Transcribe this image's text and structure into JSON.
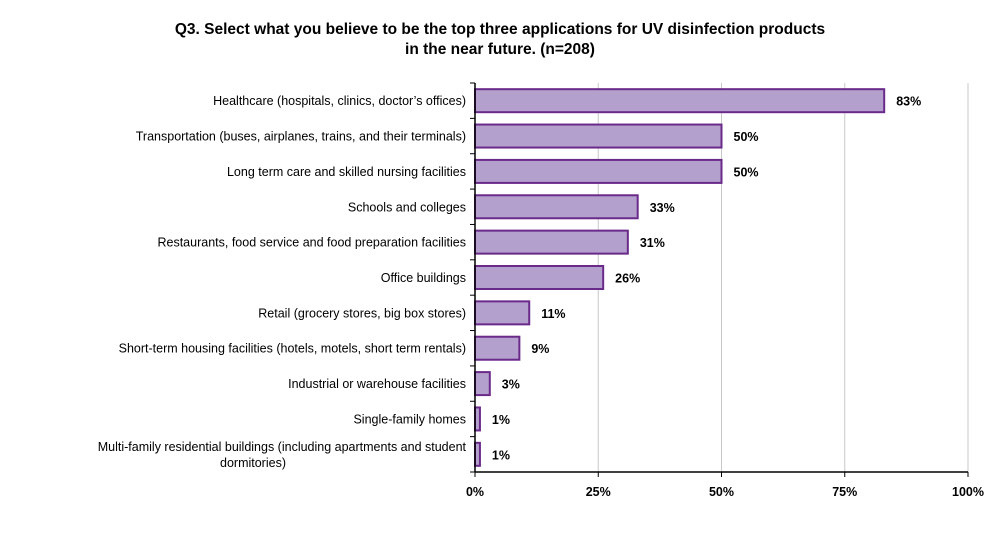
{
  "chart_data": {
    "type": "bar",
    "orientation": "horizontal",
    "title_lines": [
      "Q3. Select what you believe to be the top three applications for UV disinfection products",
      "in the near future. (n=208)"
    ],
    "xlabel": "",
    "ylabel": "",
    "xlim": [
      0,
      100
    ],
    "ticks": [
      0,
      25,
      50,
      75,
      100
    ],
    "tick_labels": [
      "0%",
      "25%",
      "50%",
      "75%",
      "100%"
    ],
    "grid": true,
    "legend": "none",
    "bar_color": "#b4a0cc",
    "bar_edge_color": "#6a2a8a",
    "categories": [
      [
        "Healthcare (hospitals, clinics, doctor’s offices)"
      ],
      [
        "Transportation (buses, airplanes, trains, and their terminals)"
      ],
      [
        "Long term care and skilled nursing facilities"
      ],
      [
        "Schools and colleges"
      ],
      [
        "Restaurants, food service and food preparation facilities"
      ],
      [
        "Office buildings"
      ],
      [
        "Retail (grocery stores, big box stores)"
      ],
      [
        "Short-term housing facilities (hotels, motels, short term rentals)"
      ],
      [
        "Industrial or warehouse facilities"
      ],
      [
        "Single-family homes"
      ],
      [
        "Multi-family residential buildings (including apartments and student",
        "dormitories)"
      ]
    ],
    "values": [
      83,
      50,
      50,
      33,
      31,
      26,
      11,
      9,
      3,
      1,
      1
    ],
    "value_labels": [
      "83%",
      "50%",
      "50%",
      "33%",
      "31%",
      "26%",
      "11%",
      "9%",
      "3%",
      "1%",
      "1%"
    ]
  }
}
